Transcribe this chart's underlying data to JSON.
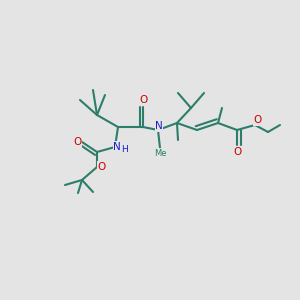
{
  "bg_color": "#e4e4e4",
  "bond_color": "#2d7d6b",
  "atom_colors": {
    "O": "#cc0000",
    "N": "#1a1acc",
    "C": "#2d7d6b",
    "H": "#2d7d6b"
  },
  "bond_width": 1.5,
  "figsize": [
    3.0,
    3.0
  ],
  "dpi": 100
}
